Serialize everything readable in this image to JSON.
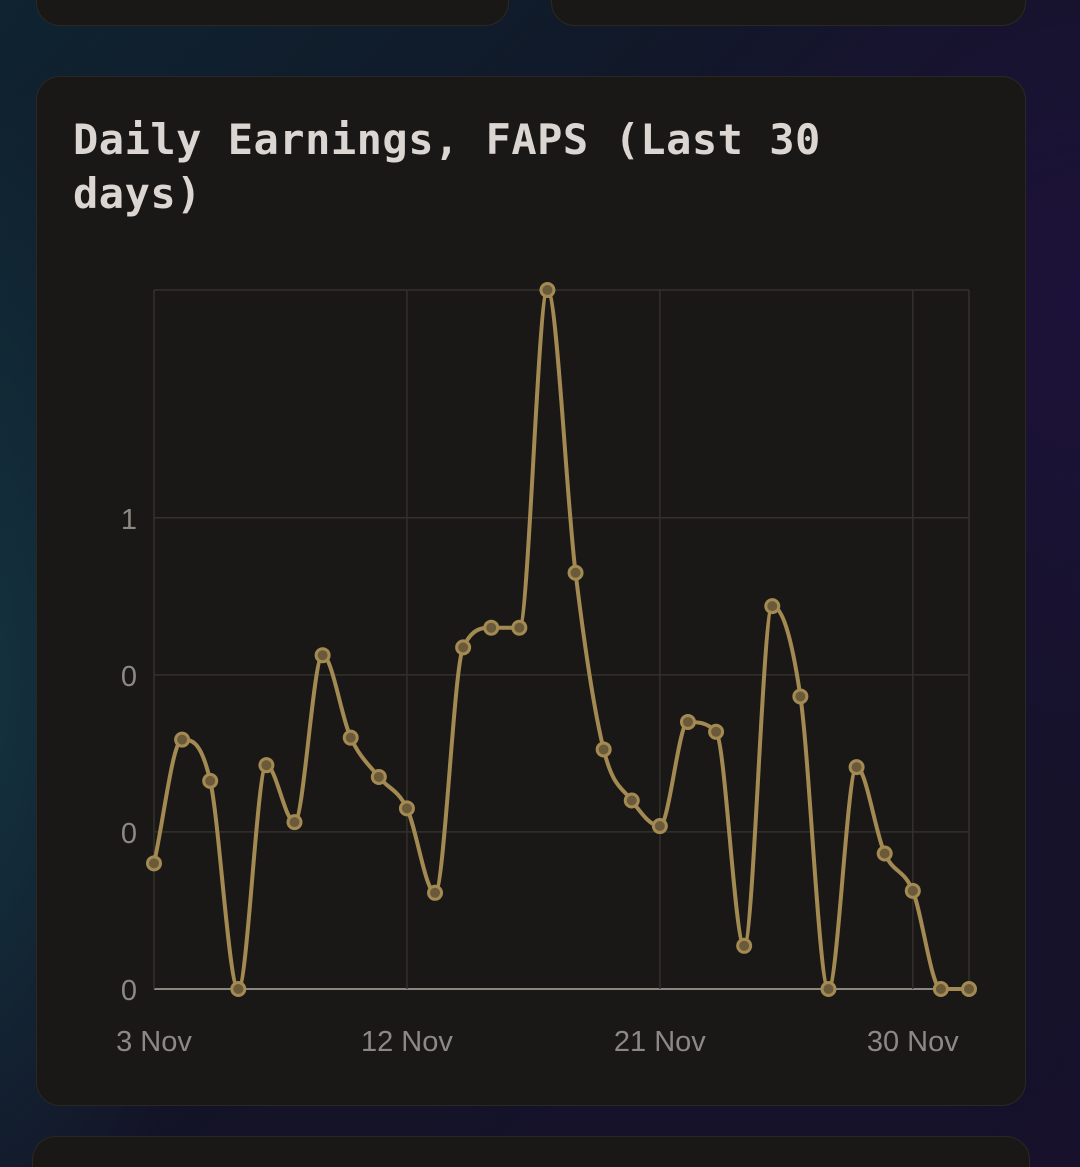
{
  "title": "Daily Earnings, FAPS (Last 30 days)",
  "colors": {
    "line": "#a38a52",
    "point_fill": "#6b5a3a",
    "grid": "#34302c",
    "axis": "#8a8680",
    "card_bg": "#1a1816"
  },
  "chart_data": {
    "type": "line",
    "title": "Daily Earnings, FAPS (Last 30 days)",
    "xlabel": "",
    "ylabel": "",
    "x_tick_labels": [
      "3 Nov",
      "12 Nov",
      "21 Nov",
      "30 Nov"
    ],
    "y_tick_labels": [
      "0",
      "0",
      "0",
      "1"
    ],
    "ylim": [
      0,
      1.7
    ],
    "grid": true,
    "legend": "none",
    "x": [
      "3 Nov",
      "4 Nov",
      "5 Nov",
      "6 Nov",
      "7 Nov",
      "8 Nov",
      "9 Nov",
      "10 Nov",
      "11 Nov",
      "12 Nov",
      "13 Nov",
      "14 Nov",
      "15 Nov",
      "16 Nov",
      "17 Nov",
      "18 Nov",
      "19 Nov",
      "20 Nov",
      "21 Nov",
      "22 Nov",
      "23 Nov",
      "24 Nov",
      "25 Nov",
      "26 Nov",
      "27 Nov",
      "28 Nov",
      "29 Nov",
      "30 Nov",
      "1 Dec",
      "2 Dec"
    ],
    "series": [
      {
        "values": [
          0.32,
          0.635,
          0.53,
          0.0,
          0.57,
          0.425,
          0.85,
          0.64,
          0.54,
          0.46,
          0.245,
          0.87,
          0.92,
          0.92,
          1.78,
          1.06,
          0.61,
          0.48,
          0.415,
          0.68,
          0.655,
          0.11,
          0.975,
          0.745,
          0.0,
          0.565,
          0.345,
          0.25,
          0.0,
          0.0
        ]
      }
    ]
  }
}
